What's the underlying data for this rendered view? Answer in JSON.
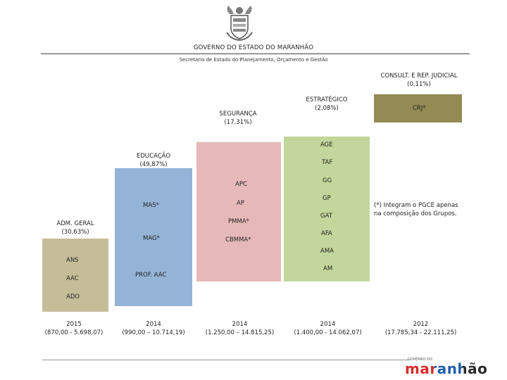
{
  "header": {
    "title": "GOVERNO DO ESTADO DO MARANHÃO",
    "subtitle": "Secretaria de Estado do Planejamento, Orçamento e Gestão"
  },
  "colors": {
    "adm": "#c4bd97",
    "edu": "#95b3d7",
    "seg": "#e6b9b8",
    "est": "#c3d69b",
    "crj": "#948a54"
  },
  "chart_data": {
    "type": "bar",
    "categories": [
      "ADM. GERAL",
      "EDUCAÇÃO",
      "SEGURANÇA",
      "ESTRATÉGICO",
      "CONSULT. E REP. JUDICIAL"
    ],
    "category_shares": [
      "(30,63%)",
      "(49,87%)",
      "(17,31%)",
      "(2,08%)",
      "(0,11%)"
    ],
    "values": [
      30.63,
      49.87,
      17.31,
      2.08,
      0.11
    ],
    "unit": "%",
    "year_labels": [
      "2015",
      "2014",
      "2014",
      "2014",
      "2012"
    ],
    "ranges": [
      "(870,00 - 5.698,07)",
      "(990,00 – 10.714,19)",
      "(1.250,00 – 14.815,25)",
      "(1.400,00 - 14.062,07)",
      "(17.785,34 - 22.111,25)"
    ],
    "groups": [
      [
        "ANS",
        "AAC",
        "ADO"
      ],
      [
        "MAS*",
        "MAG*",
        "PROF. AAC"
      ],
      [
        "APC",
        "AP",
        "PMMA*",
        "CBMMA*"
      ],
      [
        "AGE",
        "TAF",
        "GG",
        "GP",
        "GAT",
        "AFA",
        "AMA",
        "AM"
      ],
      [
        "CRJ*"
      ]
    ]
  },
  "note": "(*) Integram o PGCE apenas na composição dos Grupos.",
  "logo": {
    "top": "GOVERNO DO",
    "word": "maranhão"
  }
}
